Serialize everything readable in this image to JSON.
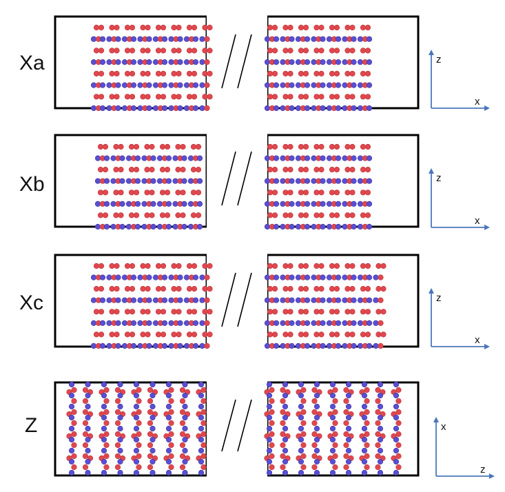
{
  "colors": {
    "frame": "#000000",
    "axis": "#4a76b8",
    "atom_red": "#e0484e",
    "atom_red_edge": "#b8343a",
    "atom_blue": "#5a4fd1",
    "atom_blue_edge": "#3e35a5",
    "break_mark": "#000000"
  },
  "panels": [
    {
      "label": "Xa",
      "orientation": "horizontal",
      "axes": {
        "vertical": "z",
        "horizontal": "x"
      }
    },
    {
      "label": "Xb",
      "orientation": "horizontal",
      "axes": {
        "vertical": "z",
        "horizontal": "x"
      }
    },
    {
      "label": "Xc",
      "orientation": "horizontal",
      "axes": {
        "vertical": "z",
        "horizontal": "x"
      }
    },
    {
      "label": "Z",
      "orientation": "vertical",
      "axes": {
        "vertical": "x",
        "horizontal": "z"
      }
    }
  ],
  "icons": {
    "break": "double-slash-break-icon"
  }
}
